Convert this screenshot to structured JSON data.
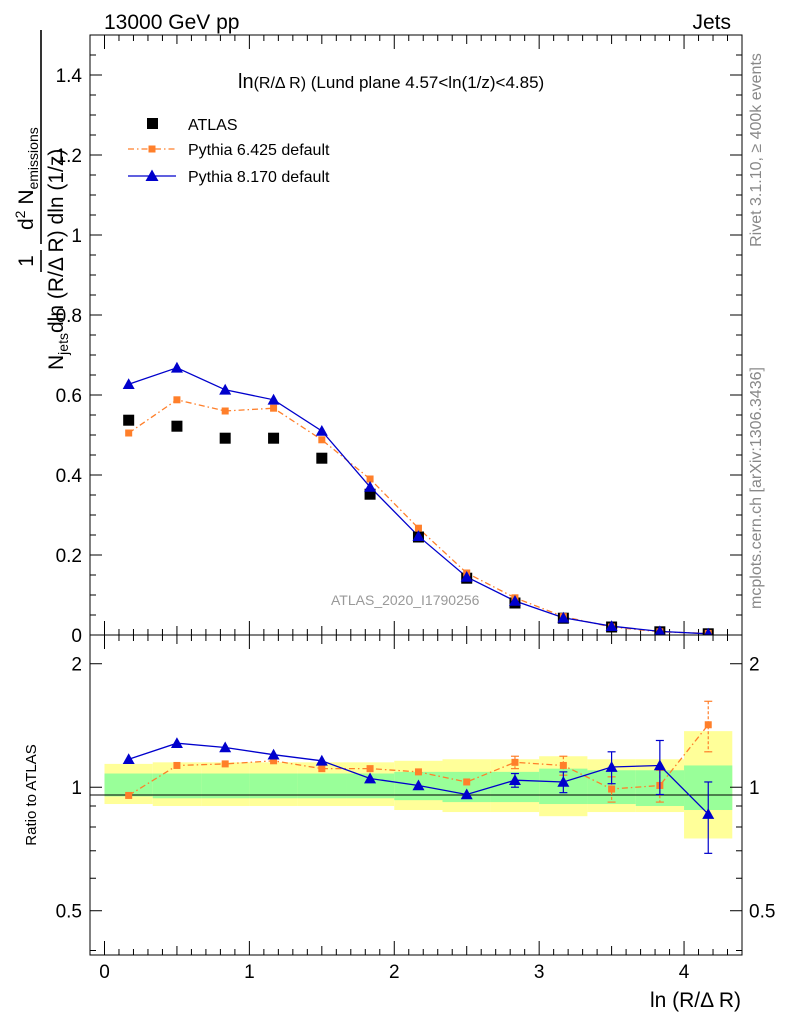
{
  "header": {
    "left": "13000 GeV pp",
    "right": "Jets"
  },
  "side_labels": {
    "rivet": "Rivet 3.1.10, ≥ 400k events",
    "mcplots": "mcplots.cern.ch [arXiv:1306.3436]"
  },
  "chart_data": [
    {
      "type": "scatter",
      "panel": "main",
      "title": "ln(R/Δ R) (Lund plane 4.57<ln(1/z)<4.85)",
      "title_main": "ln",
      "title_small": "(R/Δ R)",
      "title_rest": " (Lund plane 4.57<ln(1/z)<4.85)",
      "xlabel": "ln (R/Δ R)",
      "ylabel": "1/N_jets dln (R/Δ R) dln (1/z) d² N_emissions",
      "ylabel_parts": {
        "one": "1",
        "den_N": "N",
        "den_sub": "jets",
        "den_rest": "dln (R/Δ R) dln (1/z)",
        "num_d": "d",
        "num_sup": "2",
        "num_N": " N",
        "num_sub": "emissions"
      },
      "xlim": [
        -0.1,
        4.4
      ],
      "ylim": [
        0,
        1.5
      ],
      "y_ticks": [
        0,
        0.2,
        0.4,
        0.6,
        0.8,
        1,
        1.2,
        1.4
      ],
      "y_tick_labels": [
        "0",
        "0.2",
        "0.4",
        "0.6",
        "0.8",
        "1",
        "1.2",
        "1.4"
      ],
      "watermark": "ATLAS_2020_I1790256",
      "legend_position": "top-left",
      "x": [
        0.167,
        0.5,
        0.833,
        1.167,
        1.5,
        1.833,
        2.167,
        2.5,
        2.833,
        3.167,
        3.5,
        3.833,
        4.167
      ],
      "series": [
        {
          "name": "ATLAS",
          "marker": "square",
          "color": "#000000",
          "values": [
            0.537,
            0.522,
            0.492,
            0.492,
            0.442,
            0.352,
            0.245,
            0.142,
            0.08,
            0.042,
            0.02,
            0.008,
            0.003
          ]
        },
        {
          "name": "Pythia 6.425 default",
          "marker": "small-square",
          "color": "#ff7f2a",
          "linestyle": "dash-dot",
          "values": [
            0.505,
            0.588,
            0.56,
            0.567,
            0.488,
            0.39,
            0.267,
            0.155,
            0.093,
            0.046,
            0.02,
            0.008,
            0.004
          ]
        },
        {
          "name": "Pythia 8.170 default",
          "marker": "triangle",
          "color": "#0000cc",
          "linestyle": "solid",
          "values": [
            0.627,
            0.668,
            0.613,
            0.588,
            0.51,
            0.37,
            0.247,
            0.145,
            0.085,
            0.043,
            0.022,
            0.009,
            0.003
          ]
        }
      ]
    },
    {
      "type": "scatter",
      "panel": "ratio",
      "ylabel": "Ratio to ATLAS",
      "xlabel": "ln (R/Δ R)",
      "xlim": [
        -0.1,
        4.4
      ],
      "ylim": [
        0.39,
        2.35
      ],
      "y_scale": "log",
      "y_ticks": [
        0.5,
        1,
        2
      ],
      "y_tick_labels": [
        "0.5",
        "1",
        "2"
      ],
      "x_ticks": [
        0,
        1,
        2,
        3,
        4
      ],
      "x_tick_labels": [
        "0",
        "1",
        "2",
        "3",
        "4"
      ],
      "bin_edges": [
        0,
        0.333,
        0.667,
        1,
        1.333,
        1.667,
        2,
        2.333,
        2.667,
        3,
        3.333,
        3.667,
        4,
        4.333
      ],
      "band_inner": [
        [
          0.95,
          1.08
        ],
        [
          0.94,
          1.08
        ],
        [
          0.94,
          1.08
        ],
        [
          0.94,
          1.08
        ],
        [
          0.94,
          1.08
        ],
        [
          0.94,
          1.08
        ],
        [
          0.93,
          1.09
        ],
        [
          0.92,
          1.09
        ],
        [
          0.92,
          1.09
        ],
        [
          0.91,
          1.11
        ],
        [
          0.91,
          1.1
        ],
        [
          0.9,
          1.1
        ],
        [
          0.88,
          1.13
        ]
      ],
      "band_outer": [
        [
          0.91,
          1.14
        ],
        [
          0.9,
          1.15
        ],
        [
          0.9,
          1.15
        ],
        [
          0.9,
          1.15
        ],
        [
          0.9,
          1.15
        ],
        [
          0.9,
          1.15
        ],
        [
          0.88,
          1.16
        ],
        [
          0.87,
          1.17
        ],
        [
          0.87,
          1.17
        ],
        [
          0.85,
          1.19
        ],
        [
          0.87,
          1.17
        ],
        [
          0.87,
          1.17
        ],
        [
          0.75,
          1.37
        ]
      ],
      "series": [
        {
          "name": "Pythia 6.425 default",
          "color": "#ff7f2a",
          "linestyle": "dash-dot",
          "values": [
            0.955,
            1.13,
            1.14,
            1.16,
            1.11,
            1.11,
            1.09,
            1.03,
            1.15,
            1.13,
            0.99,
            1.01,
            1.42
          ],
          "errors": [
            0.01,
            0.01,
            0.01,
            0.01,
            0.01,
            0.01,
            0.015,
            0.02,
            0.04,
            0.06,
            0.07,
            0.09,
            0.2
          ]
        },
        {
          "name": "Pythia 8.170 default",
          "color": "#0000cc",
          "linestyle": "solid",
          "values": [
            1.17,
            1.28,
            1.25,
            1.2,
            1.16,
            1.05,
            1.01,
            0.96,
            1.04,
            1.03,
            1.12,
            1.13,
            0.86
          ],
          "errors": [
            0.01,
            0.01,
            0.01,
            0.01,
            0.01,
            0.01,
            0.015,
            0.02,
            0.04,
            0.06,
            0.1,
            0.17,
            0.17
          ]
        }
      ]
    }
  ]
}
